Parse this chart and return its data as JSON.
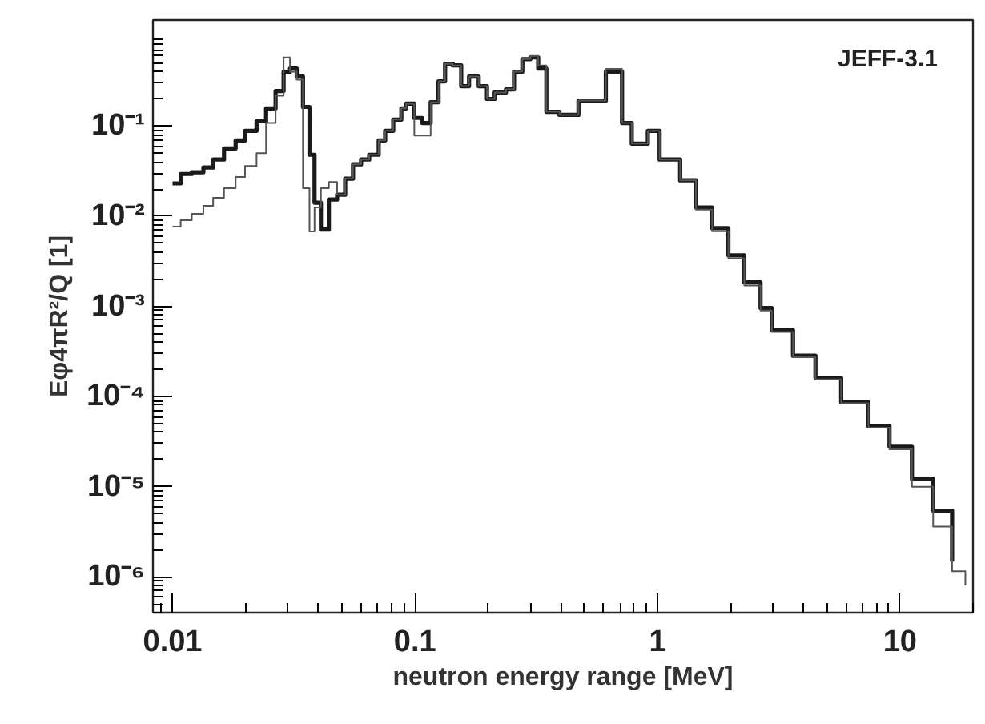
{
  "chart_data": {
    "type": "step",
    "xlabel": "neutron energy range [MeV]",
    "ylabel": "Eφ4πR²/Q [1]",
    "annotations": [
      "JEFF-3.1"
    ],
    "log": "xy",
    "grid": false,
    "line_style": "solid",
    "marker": "none",
    "xlim": [
      0.0083,
      20
    ],
    "ylim": [
      4e-07,
      1.5
    ],
    "xticks": [
      0.01,
      0.1,
      1,
      10
    ],
    "yticks": [
      {
        "value": 1e-06,
        "label": "10⁻⁶"
      },
      {
        "value": 1e-05,
        "label": "10⁻⁵"
      },
      {
        "value": 0.0001,
        "label": "10⁻⁴"
      },
      {
        "value": 0.001,
        "label": "10⁻³"
      },
      {
        "value": 0.01,
        "label": "10⁻²"
      },
      {
        "value": 0.1,
        "label": "10⁻¹"
      }
    ],
    "series": [
      {
        "color": "#1a1a1a",
        "x": [
          0.01,
          0.0108,
          0.012,
          0.0134,
          0.0147,
          0.0163,
          0.0182,
          0.0199,
          0.0222,
          0.0243,
          0.0266,
          0.0287,
          0.0305,
          0.0325,
          0.0345,
          0.0367,
          0.0385,
          0.0409,
          0.0441,
          0.0477,
          0.0515,
          0.0555,
          0.0599,
          0.0647,
          0.0708,
          0.0753,
          0.0813,
          0.0878,
          0.0919,
          0.0993,
          0.107,
          0.116,
          0.125,
          0.133,
          0.143,
          0.155,
          0.167,
          0.183,
          0.198,
          0.213,
          0.237,
          0.256,
          0.277,
          0.299,
          0.322,
          0.348,
          0.394,
          0.472,
          0.612,
          0.714,
          0.783,
          0.912,
          1.02,
          1.24,
          1.44,
          1.68,
          1.96,
          2.28,
          2.66,
          2.96,
          3.62,
          4.48,
          5.72,
          7.41,
          9.05,
          11.2,
          13.7,
          16.4
        ],
        "values": [
          0.0231,
          0.0294,
          0.0307,
          0.0347,
          0.0425,
          0.0565,
          0.0693,
          0.0885,
          0.113,
          0.157,
          0.245,
          0.4,
          0.434,
          0.354,
          0.163,
          0.048,
          0.0141,
          0.0071,
          0.0153,
          0.0173,
          0.0261,
          0.0376,
          0.0425,
          0.048,
          0.0693,
          0.0885,
          0.118,
          0.157,
          0.177,
          0.123,
          0.108,
          0.184,
          0.313,
          0.49,
          0.471,
          0.277,
          0.354,
          0.277,
          0.2,
          0.236,
          0.255,
          0.4,
          0.553,
          0.577,
          0.434,
          0.144,
          0.133,
          0.192,
          0.4,
          0.108,
          0.0638,
          0.0885,
          0.0425,
          0.025,
          0.0125,
          0.00736,
          0.00368,
          0.00184,
          0.00096,
          0.000543,
          0.000283,
          0.00016,
          8.67e-05,
          4.71e-05,
          2.77e-05,
          1.22e-05,
          5.43e-06,
          1.47e-06
        ]
      },
      {
        "color": "#555555",
        "x": [
          0.01,
          0.0108,
          0.012,
          0.0134,
          0.0147,
          0.0163,
          0.0182,
          0.0199,
          0.0222,
          0.0243,
          0.0266,
          0.0287,
          0.0305,
          0.0325,
          0.0345,
          0.0367,
          0.0385,
          0.0409,
          0.0441,
          0.0477,
          0.0515,
          0.0555,
          0.0599,
          0.0647,
          0.0708,
          0.0753,
          0.0813,
          0.0878,
          0.0919,
          0.0993,
          0.107,
          0.116,
          0.125,
          0.133,
          0.143,
          0.155,
          0.167,
          0.183,
          0.198,
          0.213,
          0.237,
          0.256,
          0.277,
          0.299,
          0.322,
          0.348,
          0.394,
          0.472,
          0.612,
          0.714,
          0.783,
          0.912,
          1.02,
          1.24,
          1.44,
          1.68,
          1.96,
          2.28,
          2.66,
          2.96,
          3.62,
          4.48,
          5.72,
          7.41,
          9.05,
          11.2,
          13.7,
          16.4,
          18.6
        ],
        "values": [
          0.00767,
          0.00903,
          0.0106,
          0.013,
          0.016,
          0.0204,
          0.0272,
          0.0361,
          0.05,
          0.108,
          0.217,
          0.577,
          0.4,
          0.326,
          0.0204,
          0.00679,
          0.0125,
          0.0204,
          0.024,
          0.0173,
          0.0261,
          0.0376,
          0.0425,
          0.048,
          0.0693,
          0.0885,
          0.118,
          0.157,
          0.177,
          0.0783,
          0.0783,
          0.184,
          0.313,
          0.49,
          0.471,
          0.277,
          0.354,
          0.277,
          0.2,
          0.236,
          0.255,
          0.4,
          0.553,
          0.6,
          0.47,
          0.144,
          0.133,
          0.192,
          0.43,
          0.108,
          0.0638,
          0.0885,
          0.0425,
          0.025,
          0.0118,
          0.0068,
          0.0034,
          0.0017,
          0.0009,
          0.00052,
          0.000275,
          0.000155,
          8.4e-05,
          4.5e-05,
          2.6e-05,
          1e-05,
          3.6e-06,
          1.15e-06,
          8e-07
        ]
      }
    ]
  }
}
